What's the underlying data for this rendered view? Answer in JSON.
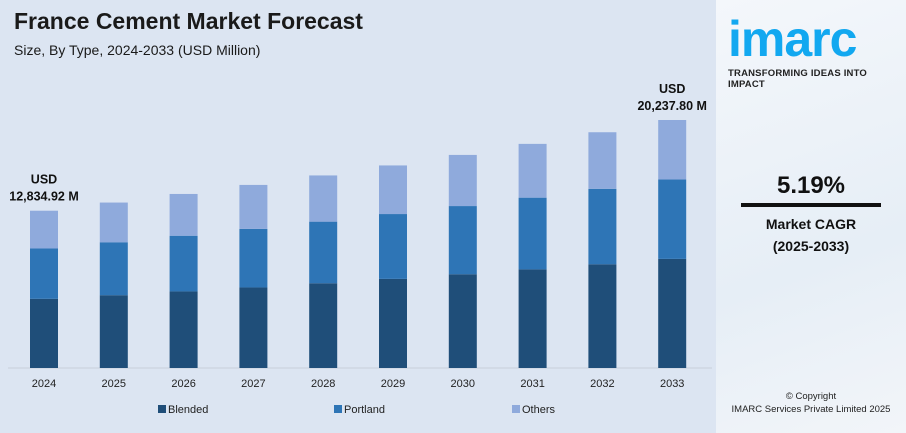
{
  "chart_data": {
    "type": "bar",
    "stacked": true,
    "title": "France Cement Market Forecast",
    "subtitle": "Size, By Type, 2024-2033 (USD Million)",
    "categories": [
      "2024",
      "2025",
      "2026",
      "2027",
      "2028",
      "2029",
      "2030",
      "2031",
      "2032",
      "2033"
    ],
    "series": [
      {
        "name": "Blended",
        "color": "#1f4e79",
        "values": [
          5647.4,
          5940.4,
          6248.9,
          6573.2,
          6914.2,
          7273.2,
          7650.7,
          8047.6,
          8465.2,
          8904.6
        ]
      },
      {
        "name": "Portland",
        "color": "#2e75b6",
        "values": [
          4107.2,
          4320.3,
          4544.6,
          4780.5,
          5028.5,
          5289.6,
          5564.2,
          5852.8,
          6156.5,
          6476.1
        ]
      },
      {
        "name": "Others",
        "color": "#8faadc",
        "values": [
          3080.4,
          3240.2,
          3408.5,
          3585.4,
          3771.4,
          3967.2,
          4173.1,
          4389.6,
          4617.4,
          4857.1
        ]
      }
    ],
    "annotations": [
      {
        "category": "2024",
        "line1": "USD",
        "line2": "12,834.92 M"
      },
      {
        "category": "2033",
        "line1": "USD",
        "line2": "20,237.80 M"
      }
    ],
    "ylim": [
      0,
      20237.8
    ],
    "grid": false,
    "legend": "bottom"
  },
  "side": {
    "logo": "imarc",
    "tagline": "TRANSFORMING IDEAS INTO IMPACT",
    "cagr": "5.19%",
    "cagr_label": "Market CAGR",
    "cagr_period": "(2025-2033)",
    "copyright": "© Copyright",
    "company": "IMARC Services Private Limited 2025"
  }
}
